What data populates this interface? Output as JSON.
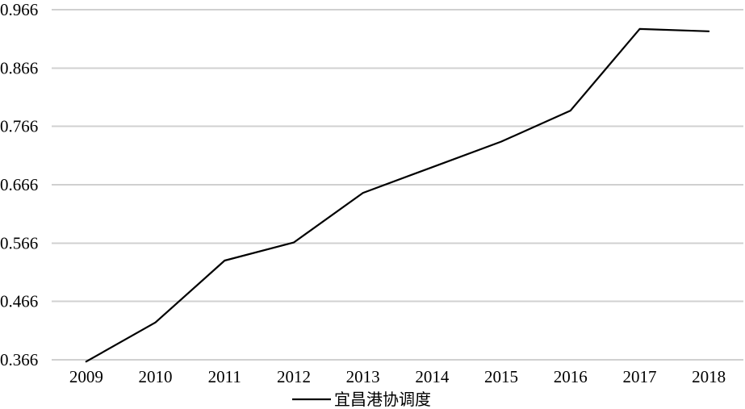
{
  "chart_data": {
    "type": "line",
    "title": "",
    "xlabel": "",
    "ylabel": "",
    "categories": [
      "2009",
      "2010",
      "2011",
      "2012",
      "2013",
      "2014",
      "2015",
      "2016",
      "2017",
      "2018"
    ],
    "y_ticks": [
      "0.366",
      "0.466",
      "0.566",
      "0.666",
      "0.766",
      "0.866",
      "0.966"
    ],
    "ylim": [
      0.366,
      0.966
    ],
    "grid": "horizontal",
    "legend_position": "bottom",
    "series": [
      {
        "name": "宜昌港协调度",
        "color": "#000000",
        "values": [
          0.363,
          0.43,
          0.536,
          0.567,
          0.652,
          0.696,
          0.74,
          0.793,
          0.933,
          0.929
        ]
      }
    ]
  }
}
